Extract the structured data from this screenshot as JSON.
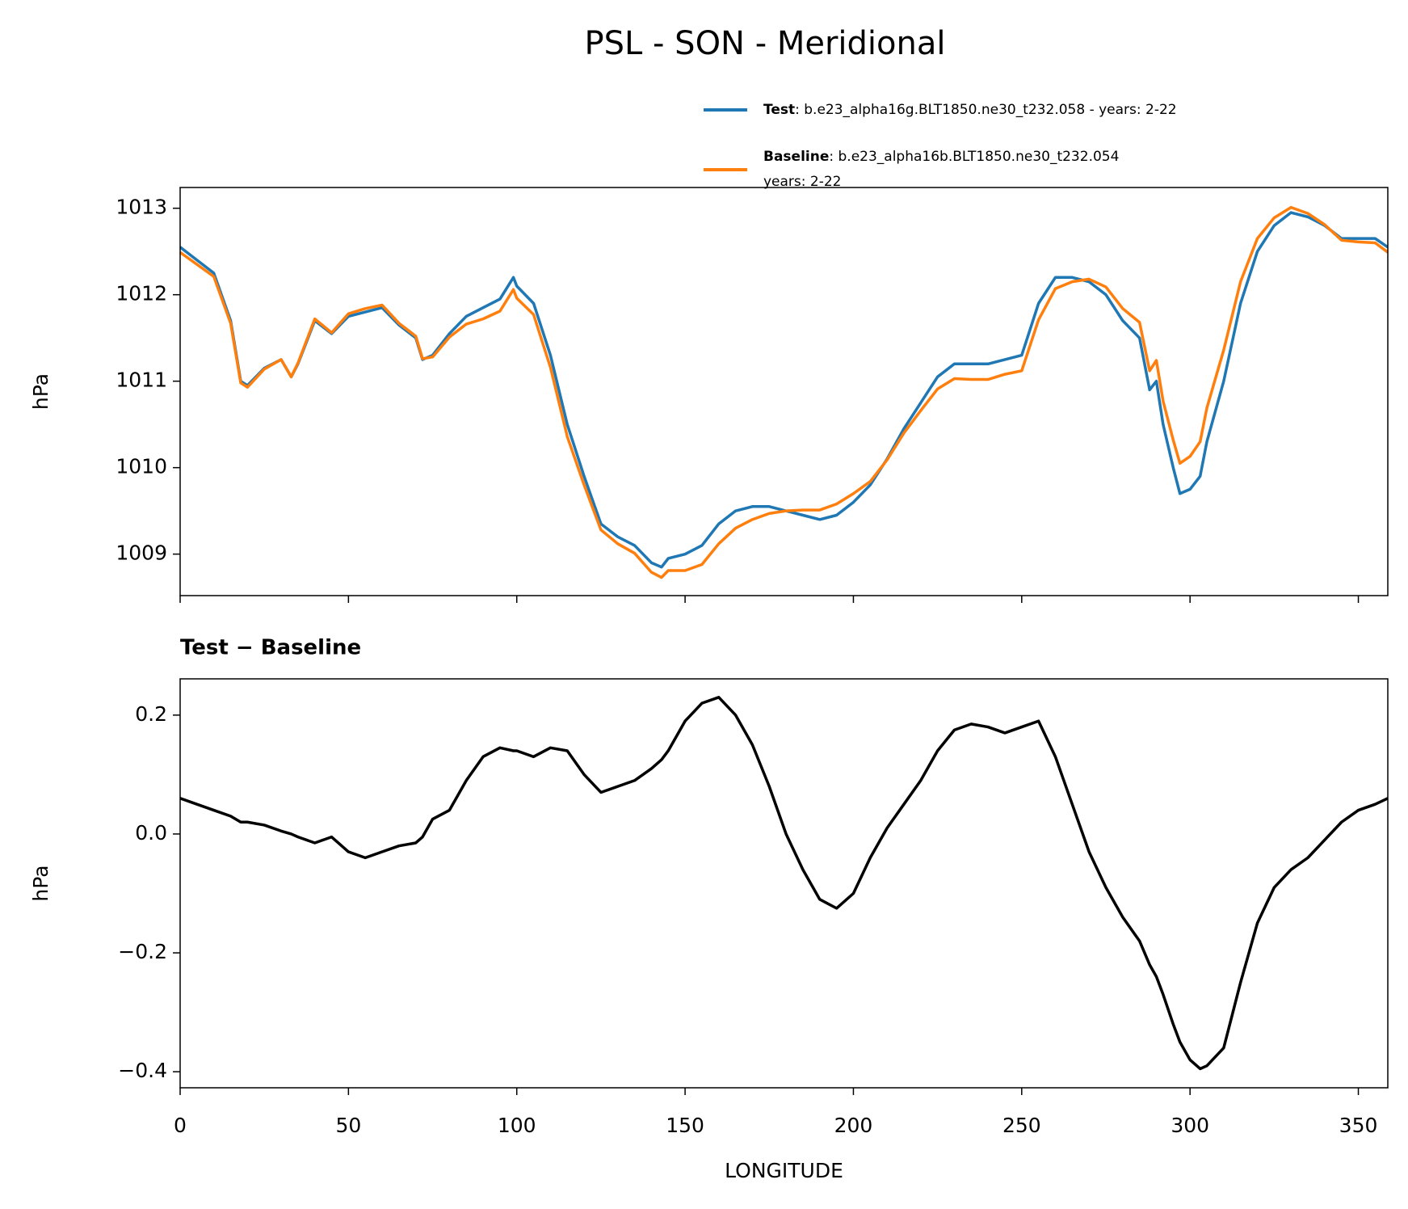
{
  "title": "PSL - SON - Meridional",
  "chart_data": [
    {
      "type": "line",
      "ylabel": "hPa",
      "x": [
        0,
        5,
        10,
        15,
        18,
        20,
        25,
        30,
        33,
        35,
        40,
        45,
        50,
        55,
        60,
        65,
        70,
        72,
        75,
        80,
        85,
        90,
        95,
        99,
        100,
        105,
        110,
        115,
        120,
        125,
        130,
        135,
        140,
        143,
        145,
        150,
        155,
        160,
        165,
        170,
        175,
        180,
        185,
        190,
        195,
        200,
        205,
        210,
        215,
        220,
        225,
        230,
        235,
        240,
        245,
        250,
        255,
        260,
        265,
        270,
        275,
        280,
        285,
        288,
        290,
        292,
        295,
        297,
        300,
        303,
        305,
        310,
        315,
        320,
        325,
        330,
        335,
        340,
        345,
        350,
        355,
        358.75
      ],
      "series": [
        {
          "name": "Test",
          "color": "#1f77b4",
          "case_lines": [
            ": b.e23_alpha16g.BLT1850.ne30_t232.058 - years: 2-22"
          ],
          "values": [
            1012.55,
            1012.4,
            1012.25,
            1011.7,
            1011.0,
            1010.95,
            1011.15,
            1011.25,
            1011.05,
            1011.2,
            1011.7,
            1011.55,
            1011.75,
            1011.8,
            1011.85,
            1011.65,
            1011.5,
            1011.25,
            1011.3,
            1011.55,
            1011.75,
            1011.85,
            1011.95,
            1012.2,
            1012.1,
            1011.9,
            1011.3,
            1010.5,
            1009.9,
            1009.35,
            1009.2,
            1009.1,
            1008.9,
            1008.85,
            1008.95,
            1009.0,
            1009.1,
            1009.35,
            1009.5,
            1009.55,
            1009.55,
            1009.5,
            1009.45,
            1009.4,
            1009.45,
            1009.6,
            1009.8,
            1010.1,
            1010.45,
            1010.75,
            1011.05,
            1011.2,
            1011.2,
            1011.2,
            1011.25,
            1011.3,
            1011.9,
            1012.2,
            1012.2,
            1012.15,
            1012.0,
            1011.7,
            1011.5,
            1010.9,
            1011.0,
            1010.5,
            1010.0,
            1009.7,
            1009.75,
            1009.9,
            1010.3,
            1011.0,
            1011.9,
            1012.5,
            1012.8,
            1012.95,
            1012.9,
            1012.8,
            1012.65,
            1012.65,
            1012.65,
            1012.55
          ]
        },
        {
          "name": "Baseline",
          "color": "#ff7f0e",
          "case_lines": [
            ": b.e23_alpha16b.BLT1850.ne30_t232.054",
            "years: 2-22"
          ],
          "values": [
            1012.49,
            1012.35,
            1012.21,
            1011.67,
            1010.98,
            1010.93,
            1011.14,
            1011.25,
            1011.05,
            1011.21,
            1011.72,
            1011.56,
            1011.78,
            1011.84,
            1011.88,
            1011.67,
            1011.52,
            1011.26,
            1011.28,
            1011.51,
            1011.66,
            1011.72,
            1011.81,
            1012.06,
            1011.96,
            1011.77,
            1011.16,
            1010.36,
            1009.8,
            1009.28,
            1009.12,
            1009.01,
            1008.79,
            1008.73,
            1008.81,
            1008.81,
            1008.88,
            1009.12,
            1009.3,
            1009.4,
            1009.47,
            1009.5,
            1009.51,
            1009.51,
            1009.58,
            1009.7,
            1009.84,
            1010.09,
            1010.4,
            1010.66,
            1010.91,
            1011.03,
            1011.02,
            1011.02,
            1011.08,
            1011.12,
            1011.71,
            1012.07,
            1012.15,
            1012.18,
            1012.09,
            1011.84,
            1011.68,
            1011.12,
            1011.24,
            1010.77,
            1010.32,
            1010.05,
            1010.13,
            1010.3,
            1010.69,
            1011.36,
            1012.15,
            1012.65,
            1012.89,
            1013.01,
            1012.94,
            1012.81,
            1012.63,
            1012.61,
            1012.6,
            1012.49
          ]
        }
      ],
      "xlim": [
        0,
        358.75
      ],
      "xticks": [
        0,
        50,
        100,
        150,
        200,
        250,
        300,
        350
      ],
      "ylim": [
        1008.52,
        1013.24
      ],
      "yticks": [
        1009,
        1010,
        1011,
        1012,
        1013
      ]
    },
    {
      "type": "line",
      "title": "Test − Baseline",
      "ylabel": "hPa",
      "xlabel": "LONGITUDE",
      "x": [
        0,
        5,
        10,
        15,
        18,
        20,
        25,
        30,
        33,
        35,
        40,
        45,
        50,
        55,
        60,
        65,
        70,
        72,
        75,
        80,
        85,
        90,
        95,
        99,
        100,
        105,
        110,
        115,
        120,
        125,
        130,
        135,
        140,
        143,
        145,
        150,
        155,
        160,
        165,
        170,
        175,
        180,
        185,
        190,
        195,
        200,
        205,
        210,
        215,
        220,
        225,
        230,
        235,
        240,
        245,
        250,
        255,
        260,
        265,
        270,
        275,
        280,
        285,
        288,
        290,
        292,
        295,
        297,
        300,
        303,
        305,
        310,
        315,
        320,
        325,
        330,
        335,
        340,
        345,
        350,
        355,
        358.75
      ],
      "series": [
        {
          "color": "#000000",
          "values": [
            0.06,
            0.05,
            0.04,
            0.03,
            0.02,
            0.02,
            0.015,
            0.005,
            0.0,
            -0.005,
            -0.015,
            -0.005,
            -0.03,
            -0.04,
            -0.03,
            -0.02,
            -0.015,
            -0.005,
            0.025,
            0.04,
            0.09,
            0.13,
            0.145,
            0.14,
            0.14,
            0.13,
            0.145,
            0.14,
            0.1,
            0.07,
            0.08,
            0.09,
            0.11,
            0.125,
            0.14,
            0.19,
            0.22,
            0.23,
            0.2,
            0.15,
            0.08,
            0.0,
            -0.06,
            -0.11,
            -0.125,
            -0.1,
            -0.04,
            0.01,
            0.05,
            0.09,
            0.14,
            0.175,
            0.185,
            0.18,
            0.17,
            0.18,
            0.19,
            0.13,
            0.05,
            -0.03,
            -0.09,
            -0.14,
            -0.18,
            -0.22,
            -0.24,
            -0.27,
            -0.32,
            -0.35,
            -0.38,
            -0.395,
            -0.39,
            -0.36,
            -0.25,
            -0.15,
            -0.09,
            -0.06,
            -0.04,
            -0.01,
            0.02,
            0.04,
            0.05,
            0.06
          ]
        }
      ],
      "xlim": [
        0,
        358.75
      ],
      "xticks": [
        0,
        50,
        100,
        150,
        200,
        250,
        300,
        350
      ],
      "ylim": [
        -0.427,
        0.261
      ],
      "yticks": [
        {
          "value": -0.4,
          "label": "−0.4"
        },
        {
          "value": -0.2,
          "label": "−0.2"
        },
        {
          "value": 0,
          "label": "0.0"
        },
        0.2
      ]
    }
  ]
}
